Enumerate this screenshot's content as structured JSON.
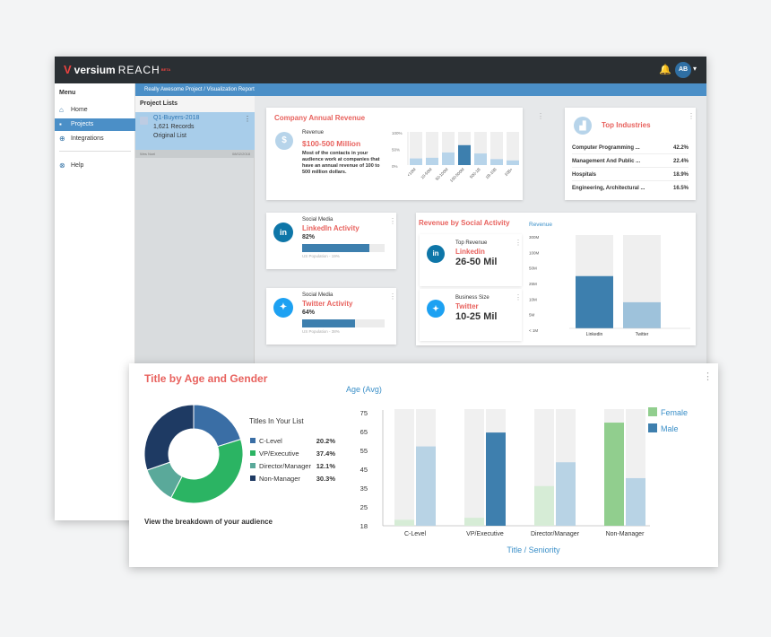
{
  "topbar": {
    "logo_brand": "versium",
    "logo_product": "REACH",
    "logo_sup": "BETA",
    "avatar": "AB",
    "bell": "🔔",
    "caret": "▾",
    "logo_mark": "V"
  },
  "sidebar": {
    "heading": "Menu",
    "items": [
      {
        "label": "Home",
        "icon": "home-icon"
      },
      {
        "label": "Projects",
        "icon": "folder-icon"
      },
      {
        "label": "Integrations",
        "icon": "plus-circle-icon"
      },
      {
        "label": "Help",
        "icon": "help-icon"
      }
    ]
  },
  "breadcrumb": "Really Awesome Project / Visualization Report",
  "project_list": {
    "heading": "Project Lists",
    "item": {
      "name": "Q1-Buyers-2018",
      "records": "1,621 Records",
      "type": "Original List"
    },
    "footer_left": "Wes Noel",
    "footer_right": "08/02/2018"
  },
  "revenue_card": {
    "title": "Company Annual Revenue",
    "label": "Revenue",
    "value": "$100-500 Million",
    "description": "Most of the contacts in your audience work at companies that have an annual revenue of 100 to 500 million dollars.",
    "icon": "$"
  },
  "revenue_chart": {
    "type": "bar",
    "categories": [
      "<10M",
      "10-50M",
      "50-100M",
      "100-500M",
      "500-1B",
      "1B-10B",
      "10B+"
    ],
    "values": [
      20,
      22,
      38,
      60,
      35,
      18,
      14
    ],
    "ylim": [
      0,
      100
    ],
    "yticks": [
      "100%",
      "50%",
      "0%"
    ],
    "highlight": "100-500M"
  },
  "industries": {
    "title": "Top Industries",
    "rows": [
      {
        "name": "Computer Programming ...",
        "pct": "42.2%"
      },
      {
        "name": "Management And Public ...",
        "pct": "22.4%"
      },
      {
        "name": "Hospitals",
        "pct": "18.9%"
      },
      {
        "name": "Engineering, Architectural ...",
        "pct": "16.5%"
      }
    ]
  },
  "linkedin_card": {
    "label": "Social Media",
    "title": "LinkedIn Activity",
    "pct": "82%",
    "fill": 0.82,
    "pop": "US Population - 19%"
  },
  "twitter_card": {
    "label": "Social Media",
    "title": "Twitter Activity",
    "pct": "64%",
    "fill": 0.64,
    "pop": "US Population - 38%"
  },
  "social_revenue": {
    "title": "Revenue by Social Activity",
    "top": {
      "label": "Top Revenue",
      "name": "Linkedin",
      "value": "26-50 Mil"
    },
    "size": {
      "label": "Business Size",
      "name": "Twitter",
      "value": "10-25 Mil"
    },
    "chart": {
      "type": "bar",
      "ylabel": "Revenue",
      "yticks": [
        "300M",
        "100M",
        "50M",
        "25M",
        "10M",
        "5M",
        "< 1M"
      ],
      "categories": [
        "Linkedin",
        "Twitter"
      ],
      "values": [
        0.56,
        0.28
      ],
      "colors": [
        "#3d7fae",
        "#9ec2db"
      ]
    }
  },
  "age_gender": {
    "title": "Title by Age and Gender",
    "summary": "View the breakdown of your audience",
    "legend_title": "Titles In Your List",
    "donut": [
      {
        "label": "C-Level",
        "pct": "20.2%",
        "value": 20.2,
        "color": "#3a6ea5"
      },
      {
        "label": "VP/Executive",
        "pct": "37.4%",
        "value": 37.4,
        "color": "#2bb463"
      },
      {
        "label": "Director/Manager",
        "pct": "12.1%",
        "value": 12.1,
        "color": "#5aa99a"
      },
      {
        "label": "Non-Manager",
        "pct": "30.3%",
        "value": 30.3,
        "color": "#1e3a63"
      }
    ]
  },
  "age_chart": {
    "type": "bar",
    "ylabel": "Age (Avg)",
    "xlabel": "Title / Seniority",
    "yticks": [
      "75",
      "65",
      "55",
      "45",
      "35",
      "25",
      "18"
    ],
    "ylim": [
      18,
      75
    ],
    "categories": [
      "C-Level",
      "VP/Executive",
      "Director/Manager",
      "Non-Manager"
    ],
    "series": [
      {
        "name": "Female",
        "values": [
          21,
          22,
          38,
          70
        ],
        "color": "#91ce8e",
        "faint": "#d6ecd6"
      },
      {
        "name": "Male",
        "values": [
          58,
          65,
          50,
          42
        ],
        "color": "#3e7fae",
        "faint": "#b8d3e5"
      }
    ]
  }
}
